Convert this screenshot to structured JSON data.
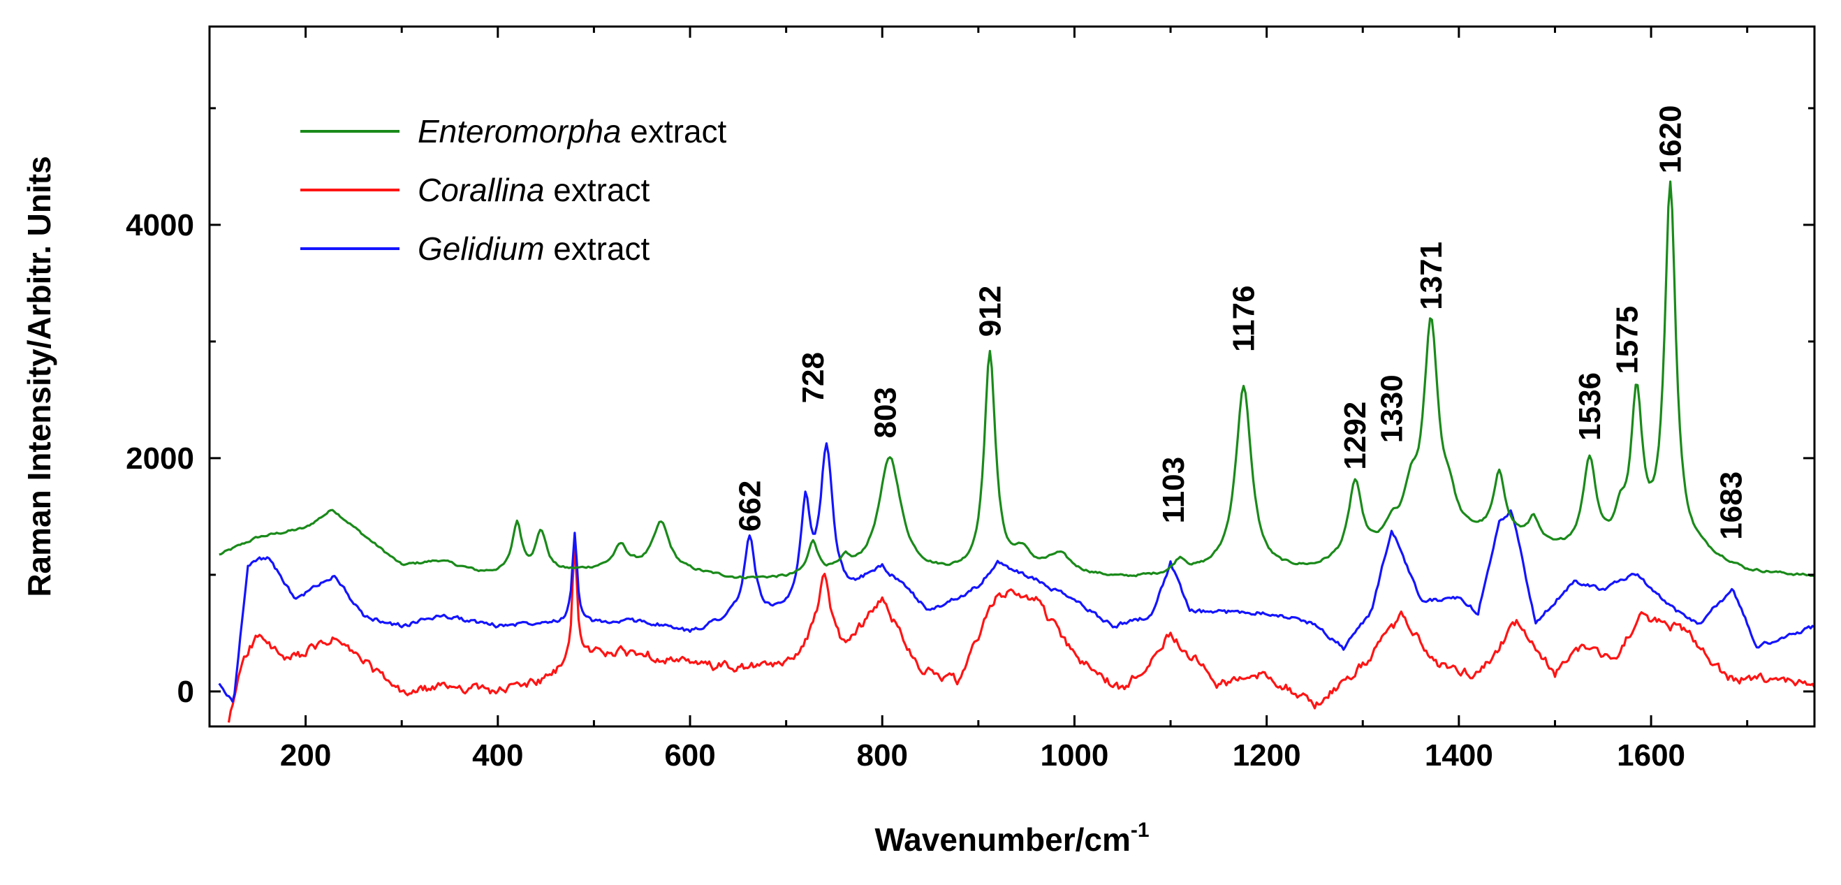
{
  "chart_data": {
    "type": "line",
    "title": "",
    "xlabel": "Wavenumber/cm",
    "xlabel_sup": "-1",
    "ylabel": "Raman Intensity/Arbitr. Units",
    "xlim": [
      100,
      1770
    ],
    "ylim": [
      -300,
      5700
    ],
    "x_ticks": [
      200,
      400,
      600,
      800,
      1000,
      1200,
      1400,
      1600
    ],
    "y_ticks": [
      0,
      2000,
      4000
    ],
    "grid": false,
    "legend_position": "top-left",
    "series": [
      {
        "name": "Enteromorpha",
        "suffix": " extract",
        "color": "#1a8a1a",
        "baseline": [
          [
            110,
            1170
          ],
          [
            150,
            1320
          ],
          [
            200,
            1400
          ],
          [
            228,
            1560
          ],
          [
            260,
            1340
          ],
          [
            300,
            1080
          ],
          [
            340,
            1120
          ],
          [
            380,
            1020
          ],
          [
            420,
            1000
          ],
          [
            470,
            1020
          ],
          [
            520,
            1060
          ],
          [
            560,
            1060
          ],
          [
            600,
            1020
          ],
          [
            650,
            960
          ],
          [
            700,
            960
          ],
          [
            750,
            1000
          ],
          [
            850,
            990
          ],
          [
            900,
            990
          ],
          [
            950,
            1050
          ],
          [
            990,
            1000
          ],
          [
            1050,
            960
          ],
          [
            1100,
            980
          ],
          [
            1150,
            1020
          ],
          [
            1200,
            1010
          ],
          [
            1250,
            1030
          ],
          [
            1300,
            1150
          ],
          [
            1350,
            1250
          ],
          [
            1400,
            1300
          ],
          [
            1450,
            1330
          ],
          [
            1500,
            1200
          ],
          [
            1550,
            1200
          ],
          [
            1600,
            1200
          ],
          [
            1650,
            1170
          ],
          [
            1700,
            1020
          ],
          [
            1770,
            980
          ]
        ],
        "peaks": [
          [
            420,
            430,
            6
          ],
          [
            445,
            350,
            7
          ],
          [
            528,
            180,
            8
          ],
          [
            570,
            390,
            10
          ],
          [
            728,
            280,
            6
          ],
          [
            762,
            90,
            5
          ],
          [
            808,
            1000,
            14
          ],
          [
            912,
            1880,
            7
          ],
          [
            945,
            120,
            8
          ],
          [
            985,
            150,
            14
          ],
          [
            1110,
            120,
            8
          ],
          [
            1176,
            1580,
            10
          ],
          [
            1292,
            630,
            8
          ],
          [
            1330,
            150,
            8
          ],
          [
            1350,
            350,
            9
          ],
          [
            1371,
            1820,
            9
          ],
          [
            1390,
            250,
            8
          ],
          [
            1442,
            500,
            7
          ],
          [
            1478,
            200,
            6
          ],
          [
            1536,
            760,
            8
          ],
          [
            1568,
            230,
            6
          ],
          [
            1585,
            1280,
            7
          ],
          [
            1620,
            3120,
            7
          ]
        ],
        "noise": 20
      },
      {
        "name": "Corallina",
        "suffix": " extract",
        "color": "#ff1414",
        "baseline": [
          [
            120,
            -280
          ],
          [
            135,
            300
          ],
          [
            150,
            480
          ],
          [
            180,
            260
          ],
          [
            230,
            450
          ],
          [
            260,
            260
          ],
          [
            300,
            -20
          ],
          [
            350,
            50
          ],
          [
            400,
            0
          ],
          [
            450,
            100
          ],
          [
            500,
            330
          ],
          [
            550,
            330
          ],
          [
            600,
            230
          ],
          [
            650,
            200
          ],
          [
            700,
            220
          ],
          [
            730,
            480
          ],
          [
            760,
            380
          ],
          [
            800,
            780
          ],
          [
            840,
            200
          ],
          [
            880,
            80
          ],
          [
            920,
            850
          ],
          [
            960,
            800
          ],
          [
            1000,
            300
          ],
          [
            1050,
            0
          ],
          [
            1100,
            500
          ],
          [
            1150,
            60
          ],
          [
            1200,
            150
          ],
          [
            1250,
            -120
          ],
          [
            1300,
            220
          ],
          [
            1340,
            640
          ],
          [
            1380,
            210
          ],
          [
            1420,
            150
          ],
          [
            1460,
            580
          ],
          [
            1500,
            150
          ],
          [
            1530,
            420
          ],
          [
            1560,
            260
          ],
          [
            1590,
            650
          ],
          [
            1640,
            500
          ],
          [
            1680,
            100
          ],
          [
            1720,
            100
          ],
          [
            1770,
            60
          ]
        ],
        "peaks": [
          [
            480,
            1050,
            3
          ],
          [
            740,
            600,
            6
          ]
        ],
        "noise": 75
      },
      {
        "name": "Gelidium",
        "suffix": " extract",
        "color": "#1414ff",
        "baseline": [
          [
            110,
            60
          ],
          [
            125,
            -100
          ],
          [
            140,
            1100
          ],
          [
            160,
            1150
          ],
          [
            190,
            790
          ],
          [
            230,
            1000
          ],
          [
            260,
            640
          ],
          [
            300,
            560
          ],
          [
            340,
            650
          ],
          [
            400,
            560
          ],
          [
            450,
            600
          ],
          [
            500,
            580
          ],
          [
            550,
            600
          ],
          [
            600,
            500
          ],
          [
            640,
            620
          ],
          [
            700,
            640
          ],
          [
            760,
            800
          ],
          [
            800,
            1050
          ],
          [
            850,
            680
          ],
          [
            900,
            900
          ],
          [
            920,
            1100
          ],
          [
            960,
            950
          ],
          [
            1000,
            780
          ],
          [
            1040,
            560
          ],
          [
            1080,
            650
          ],
          [
            1100,
            1100
          ],
          [
            1120,
            680
          ],
          [
            1200,
            680
          ],
          [
            1250,
            580
          ],
          [
            1280,
            370
          ],
          [
            1310,
            700
          ],
          [
            1330,
            1400
          ],
          [
            1360,
            780
          ],
          [
            1400,
            790
          ],
          [
            1420,
            680
          ],
          [
            1442,
            1450
          ],
          [
            1455,
            1550
          ],
          [
            1480,
            580
          ],
          [
            1520,
            950
          ],
          [
            1550,
            880
          ],
          [
            1585,
            1000
          ],
          [
            1620,
            720
          ],
          [
            1650,
            580
          ],
          [
            1685,
            880
          ],
          [
            1710,
            380
          ],
          [
            1770,
            560
          ]
        ],
        "peaks": [
          [
            480,
            780,
            3
          ],
          [
            662,
            680,
            7
          ],
          [
            720,
            850,
            6
          ],
          [
            742,
            1300,
            8
          ]
        ],
        "noise": 35
      }
    ],
    "peak_labels": [
      {
        "text": "662",
        "x": 662,
        "y": 1370
      },
      {
        "text": "728",
        "x": 728,
        "y": 2470
      },
      {
        "text": "803",
        "x": 803,
        "y": 2170
      },
      {
        "text": "912",
        "x": 912,
        "y": 3040
      },
      {
        "text": "1103",
        "x": 1103,
        "y": 1440
      },
      {
        "text": "1176",
        "x": 1176,
        "y": 2910
      },
      {
        "text": "1292",
        "x": 1292,
        "y": 1900
      },
      {
        "text": "1330",
        "x": 1330,
        "y": 2130
      },
      {
        "text": "1371",
        "x": 1371,
        "y": 3270
      },
      {
        "text": "1536",
        "x": 1536,
        "y": 2150
      },
      {
        "text": "1575",
        "x": 1575,
        "y": 2720
      },
      {
        "text": "1620",
        "x": 1620,
        "y": 4440
      },
      {
        "text": "1683",
        "x": 1683,
        "y": 1300
      }
    ]
  }
}
